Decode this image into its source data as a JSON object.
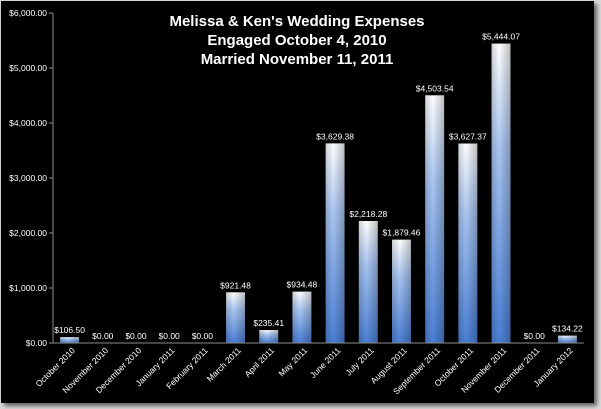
{
  "chart_data": {
    "type": "bar",
    "title": [
      "Melissa & Ken's Wedding Expenses",
      "Engaged October 4, 2010",
      "Married November 11, 2011"
    ],
    "xlabel": "",
    "ylabel": "",
    "ylim": [
      0,
      6000
    ],
    "yticks": [
      0,
      1000,
      2000,
      3000,
      4000,
      5000,
      6000
    ],
    "ytick_labels": [
      "$0.00",
      "$1,000.00",
      "$2,000.00",
      "$3,000.00",
      "$4,000.00",
      "$5,000.00",
      "$6,000.00"
    ],
    "grid": false,
    "legend": "none",
    "categories": [
      "October 2010",
      "November 2010",
      "December 2010",
      "January 2011",
      "February 2011",
      "March 2011",
      "April 2011",
      "May 2011",
      "June 2011",
      "July 2011",
      "August 2011",
      "September 2011",
      "October 2011",
      "November 2011",
      "December 2011",
      "January 2012"
    ],
    "values": [
      106.5,
      0,
      0,
      0,
      0,
      921.48,
      235.41,
      934.48,
      3629.38,
      2218.28,
      1879.46,
      4503.54,
      3627.37,
      5444.07,
      0,
      134.22
    ],
    "value_labels": [
      "$106.50",
      "$0.00",
      "$0.00",
      "$0.00",
      "$0.00",
      "$921.48",
      "$235.41",
      "$934.48",
      "$3,629.38",
      "$2,218.28",
      "$1,879.46",
      "$4,503.54",
      "$3,627.37",
      "$5,444.07",
      "$0.00",
      "$134.22"
    ],
    "colors": {
      "background": "#000000",
      "bar_top": "#ffffff",
      "bar_bottom": "#4a7fd6",
      "text": "#ffffff",
      "axis": "#8c8c8c"
    }
  }
}
